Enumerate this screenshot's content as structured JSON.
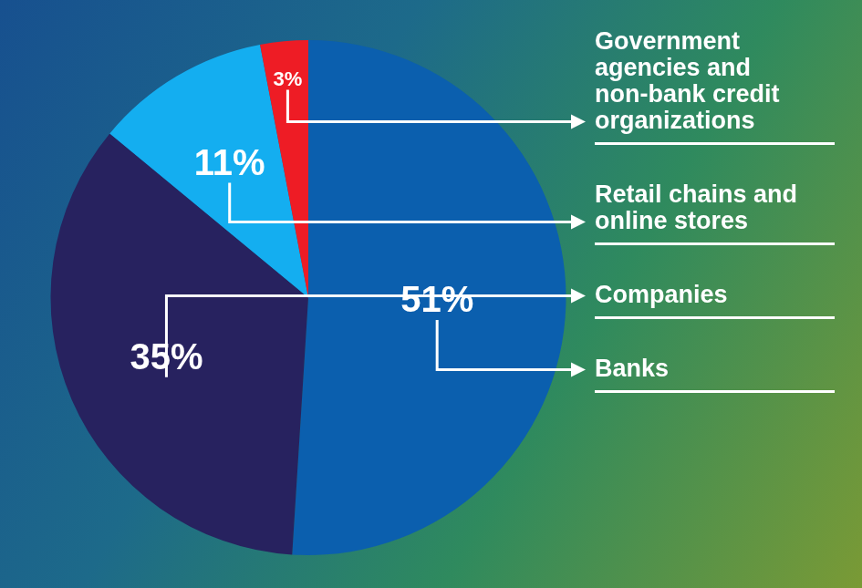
{
  "chart_data": {
    "type": "pie",
    "categories": [
      "Banks",
      "Companies",
      "Retail chains and online stores",
      "Government agencies and non-bank credit organizations"
    ],
    "values": [
      51,
      35,
      11,
      3
    ],
    "value_labels": [
      "51%",
      "35%",
      "11%",
      "3%"
    ],
    "colors": [
      "#0b5fae",
      "#27225f",
      "#14aef0",
      "#ee1c25"
    ],
    "data_labels": true
  }
}
